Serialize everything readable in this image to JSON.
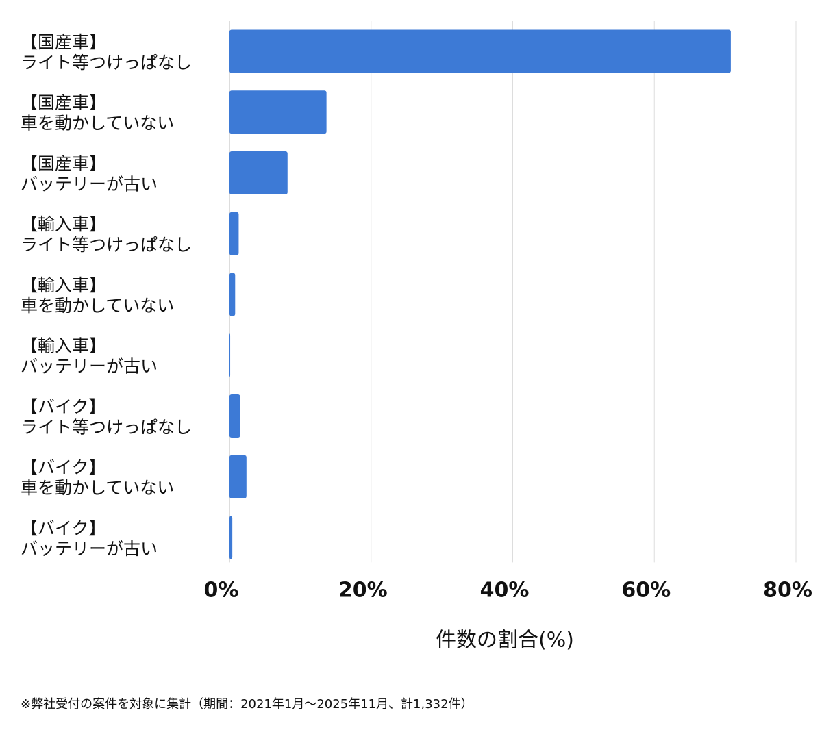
{
  "chart_data": {
    "type": "barh",
    "categories": [
      [
        "【国産車】",
        "ライト等つけっぱなし"
      ],
      [
        "【国産車】",
        "車を動かしていない"
      ],
      [
        "【国産車】",
        "バッテリーが古い"
      ],
      [
        "【輸入車】",
        "ライト等つけっぱなし"
      ],
      [
        "【輸入車】",
        "車を動かしていない"
      ],
      [
        "【輸入車】",
        "バッテリーが古い"
      ],
      [
        "【バイク】",
        "ライト等つけっぱなし"
      ],
      [
        "【バイク】",
        "車を動かしていない"
      ],
      [
        "【バイク】",
        "バッテリーが古い"
      ]
    ],
    "values": [
      70.8,
      13.7,
      8.2,
      1.3,
      0.8,
      0.1,
      1.5,
      2.4,
      0.4
    ],
    "color": "#3d7ad6",
    "xlim": [
      0,
      80
    ],
    "xticks": [
      {
        "value": 0,
        "label": "0%"
      },
      {
        "value": 20,
        "label": "20%"
      },
      {
        "value": 40,
        "label": "40%"
      },
      {
        "value": 60,
        "label": "60%"
      },
      {
        "value": 80,
        "label": "80%"
      }
    ],
    "grid": true,
    "xlabel": "件数の割合(%)",
    "footnote": "※弊社受付の案件を対象に集計（期間：2021年1月～2025年11月、計1,332件）"
  }
}
